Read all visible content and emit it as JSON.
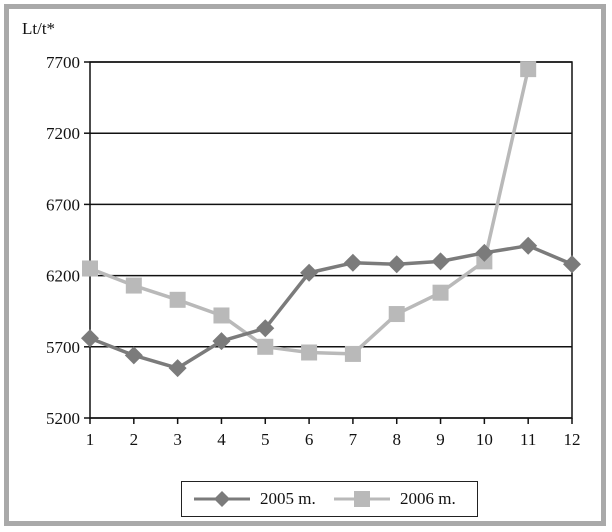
{
  "chart_data": {
    "type": "line",
    "ylabel": "Lt/t*",
    "xlabel": "",
    "x": [
      1,
      2,
      3,
      4,
      5,
      6,
      7,
      8,
      9,
      10,
      11,
      12
    ],
    "ylim": [
      5200,
      7700
    ],
    "yticks": [
      5200,
      5700,
      6200,
      6700,
      7200,
      7700
    ],
    "grid": "horizontal",
    "legend_position": "bottom",
    "series": [
      {
        "name": "2005 m.",
        "color": "#7b7b7b",
        "marker": "diamond",
        "values": [
          5760,
          5640,
          5550,
          5740,
          5830,
          6220,
          6290,
          6280,
          6300,
          6360,
          6410,
          6280
        ]
      },
      {
        "name": "2006 m.",
        "color": "#b9b9b9",
        "marker": "square",
        "values": [
          6250,
          6130,
          6030,
          5920,
          5700,
          5660,
          5650,
          5930,
          6080,
          6300,
          7650,
          null
        ]
      }
    ]
  }
}
